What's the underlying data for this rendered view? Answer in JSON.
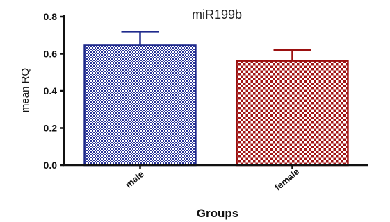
{
  "chart_data": {
    "type": "bar",
    "title": "miR199b",
    "xlabel": "Groups",
    "ylabel": "mean RQ",
    "categories": [
      "male",
      "female"
    ],
    "values": [
      0.645,
      0.562
    ],
    "error": [
      0.075,
      0.058
    ],
    "ylim": [
      0,
      0.8
    ],
    "yticks": [
      "0.0",
      "0.2",
      "0.4",
      "0.6",
      "0.8"
    ],
    "grid": false,
    "legend": "none",
    "colors": {
      "male_border": "#1f2a8c",
      "male_fill": "#8a93c9",
      "female_border": "#9b1010",
      "female_fill": "#d9a3a3"
    }
  }
}
